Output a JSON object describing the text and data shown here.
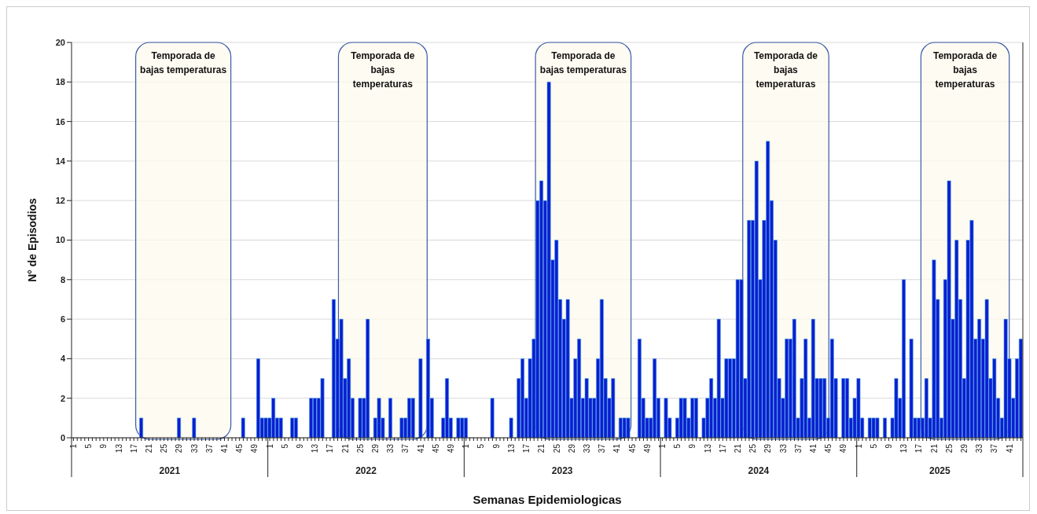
{
  "chart_data": {
    "type": "bar",
    "xlabel": "Semanas Epidemiologicas",
    "ylabel": "N° de Episodios",
    "categories": [
      "1",
      null,
      null,
      null,
      "5",
      null,
      null,
      null,
      "9",
      null,
      null,
      null,
      "13",
      null,
      null,
      null,
      "17",
      null,
      null,
      null,
      "21",
      null,
      null,
      null,
      "25",
      null,
      null,
      null,
      "29",
      null,
      null,
      null,
      "33",
      null,
      null,
      null,
      "37",
      null,
      null,
      null,
      "41",
      null,
      null,
      null,
      "45",
      null,
      null,
      null,
      "49",
      null,
      null,
      null,
      "1",
      null,
      null,
      null,
      "5",
      null,
      null,
      null,
      "9",
      null,
      null,
      null,
      "13",
      null,
      null,
      null,
      "17",
      null,
      null,
      null,
      "21",
      null,
      null,
      null,
      "25",
      null,
      null,
      null,
      "29",
      null,
      null,
      null,
      "33",
      null,
      null,
      null,
      "37",
      null,
      null,
      null,
      "41",
      null,
      null,
      null,
      "45",
      null,
      null,
      null,
      "49",
      null,
      null,
      null,
      "1",
      null,
      null,
      null,
      "5",
      null,
      null,
      null,
      "9",
      null,
      null,
      null,
      "13",
      null,
      null,
      null,
      "17",
      null,
      null,
      null,
      "21",
      null,
      null,
      null,
      "25",
      null,
      null,
      null,
      "29",
      null,
      null,
      null,
      "33",
      null,
      null,
      null,
      "37",
      null,
      null,
      null,
      "41",
      null,
      null,
      null,
      "45",
      null,
      null,
      null,
      "49",
      null,
      null,
      null,
      "1",
      null,
      null,
      null,
      "5",
      null,
      null,
      null,
      "9",
      null,
      null,
      null,
      "13",
      null,
      null,
      null,
      "17",
      null,
      null,
      null,
      "21",
      null,
      null,
      null,
      "25",
      null,
      null,
      null,
      "29",
      null,
      null,
      null,
      "33",
      null,
      null,
      null,
      "37",
      null,
      null,
      null,
      "41",
      null,
      null,
      null,
      "45",
      null,
      null,
      null,
      "49",
      null,
      null,
      null,
      "1",
      null,
      null,
      null,
      "5",
      null,
      null,
      null,
      "9",
      null,
      null,
      null,
      "13",
      null,
      null,
      null,
      "17",
      null,
      null,
      null,
      "21",
      null,
      null,
      null,
      "25",
      null,
      null,
      null,
      "29",
      null,
      null,
      null,
      "33",
      null,
      null,
      null,
      "37",
      null,
      null,
      null,
      "41",
      null,
      null,
      null
    ],
    "values": [
      0,
      0,
      0,
      0,
      0,
      0,
      0,
      0,
      0,
      0,
      0,
      0,
      0,
      0,
      0,
      0,
      0,
      0,
      1,
      0,
      0,
      0,
      0,
      0,
      0,
      0,
      0,
      0,
      1,
      0,
      0,
      0,
      1,
      0,
      0,
      0,
      0,
      0,
      0,
      0,
      0,
      0,
      0,
      0,
      0,
      1,
      0,
      0,
      0,
      4,
      1,
      1,
      1,
      2,
      1,
      1,
      0,
      0,
      1,
      1,
      0,
      0,
      0,
      2,
      2,
      2,
      3,
      0,
      0,
      7,
      5,
      6,
      3,
      4,
      2,
      0,
      2,
      2,
      6,
      0,
      1,
      2,
      1,
      0,
      2,
      0,
      0,
      1,
      1,
      2,
      2,
      0,
      4,
      0,
      5,
      2,
      0,
      0,
      1,
      3,
      1,
      0,
      1,
      1,
      1,
      0,
      0,
      0,
      0,
      0,
      0,
      2,
      0,
      0,
      0,
      0,
      1,
      0,
      3,
      4,
      2,
      4,
      5,
      12,
      13,
      12,
      18,
      9,
      10,
      7,
      6,
      7,
      2,
      4,
      5,
      2,
      3,
      2,
      2,
      4,
      7,
      3,
      2,
      3,
      0,
      1,
      1,
      1,
      0,
      0,
      5,
      2,
      1,
      1,
      4,
      2,
      0,
      2,
      1,
      0,
      1,
      2,
      2,
      1,
      2,
      2,
      0,
      1,
      2,
      3,
      2,
      6,
      2,
      4,
      4,
      4,
      8,
      8,
      3,
      11,
      11,
      14,
      8,
      11,
      15,
      12,
      10,
      3,
      2,
      5,
      5,
      6,
      1,
      3,
      5,
      1,
      6,
      3,
      3,
      3,
      1,
      5,
      3,
      0,
      3,
      3,
      1,
      2,
      3,
      1,
      0,
      1,
      1,
      1,
      0,
      1,
      0,
      1,
      3,
      2,
      8,
      0,
      5,
      1,
      1,
      1,
      3,
      1,
      9,
      7,
      1,
      8,
      13,
      6,
      10,
      7,
      3,
      10,
      11,
      5,
      6,
      5,
      7,
      3,
      4,
      2,
      1,
      6,
      4,
      2,
      4,
      5
    ],
    "color": "#0a1ed2",
    "ylim": [
      0,
      20
    ],
    "yticks": [
      0,
      2,
      4,
      6,
      8,
      10,
      12,
      14,
      16,
      18,
      20
    ],
    "grid": "y",
    "annotations": [
      "2021",
      "2022",
      "2023",
      "2024",
      "2025",
      "Temporada de bajas temperaturas",
      "Temporada de bajas temperaturas",
      "Temporada de bajas temperaturas",
      "Temporada de bajas temperaturas",
      "Temporada de bajas temperaturas"
    ]
  }
}
